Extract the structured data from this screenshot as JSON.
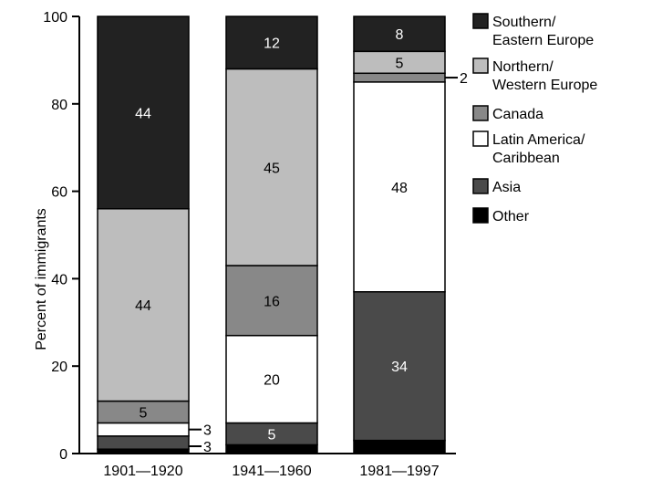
{
  "chart_data": {
    "type": "bar",
    "stacked": true,
    "title": "",
    "xlabel": "",
    "ylabel": "Percent of immigrants",
    "ylim": [
      0,
      100
    ],
    "yticks": [
      0,
      20,
      40,
      60,
      80,
      100
    ],
    "grid": false,
    "legend_position": "right",
    "categories": [
      "1901—1920",
      "1941—1960",
      "1981—1997"
    ],
    "series": [
      {
        "name": "Other",
        "color": "#000000",
        "values": [
          1,
          2,
          3
        ],
        "labels": [
          "",
          "",
          ""
        ]
      },
      {
        "name": "Asia",
        "color": "#4a4a4a",
        "values": [
          3,
          5,
          34
        ],
        "labels": [
          "3",
          "5",
          "34"
        ]
      },
      {
        "name": "Latin America/ Caribbean",
        "color": "#ffffff",
        "values": [
          3,
          20,
          48
        ],
        "labels": [
          "3",
          "20",
          "48"
        ]
      },
      {
        "name": "Canada",
        "color": "#888888",
        "values": [
          5,
          16,
          2
        ],
        "labels": [
          "5",
          "16",
          "2"
        ]
      },
      {
        "name": "Northern/ Western Europe",
        "color": "#bdbdbd",
        "values": [
          44,
          45,
          5
        ],
        "labels": [
          "44",
          "45",
          "5"
        ]
      },
      {
        "name": "Southern/ Eastern Europe",
        "color": "#222222",
        "values": [
          44,
          12,
          8
        ],
        "labels": [
          "44",
          "12",
          "8"
        ]
      }
    ],
    "legend": [
      {
        "lines": [
          "Southern/",
          "Eastern Europe"
        ],
        "color": "#222222"
      },
      {
        "lines": [
          "Northern/",
          "Western Europe"
        ],
        "color": "#bdbdbd"
      },
      {
        "lines": [
          "Canada"
        ],
        "color": "#888888"
      },
      {
        "lines": [
          "Latin America/",
          "Caribbean"
        ],
        "color": "#ffffff"
      },
      {
        "lines": [
          "Asia"
        ],
        "color": "#4a4a4a"
      },
      {
        "lines": [
          "Other"
        ],
        "color": "#000000"
      }
    ]
  }
}
